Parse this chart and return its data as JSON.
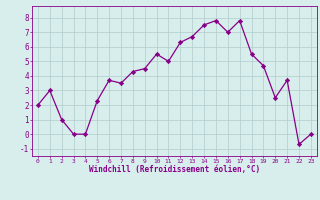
{
  "x": [
    0,
    1,
    2,
    3,
    4,
    5,
    6,
    7,
    8,
    9,
    10,
    11,
    12,
    13,
    14,
    15,
    16,
    17,
    18,
    19,
    20,
    21,
    22,
    23
  ],
  "y": [
    2,
    3,
    1,
    0,
    0,
    2.3,
    3.7,
    3.5,
    4.3,
    4.5,
    5.5,
    5.0,
    6.3,
    6.7,
    7.5,
    7.8,
    7.0,
    7.8,
    5.5,
    4.7,
    2.5,
    3.7,
    -0.7,
    0
  ],
  "line_color": "#880088",
  "marker_color": "#880088",
  "bg_color": "#d8eeed",
  "grid_color": "#b0cccc",
  "xlabel": "Windchill (Refroidissement éolien,°C)",
  "xlabel_color": "#880088",
  "ylim": [
    -1.5,
    8.8
  ],
  "xlim": [
    -0.5,
    23.5
  ],
  "yticks": [
    -1,
    0,
    1,
    2,
    3,
    4,
    5,
    6,
    7,
    8
  ],
  "xticks": [
    0,
    1,
    2,
    3,
    4,
    5,
    6,
    7,
    8,
    9,
    10,
    11,
    12,
    13,
    14,
    15,
    16,
    17,
    18,
    19,
    20,
    21,
    22,
    23
  ],
  "figsize": [
    3.2,
    2.0
  ],
  "dpi": 100
}
